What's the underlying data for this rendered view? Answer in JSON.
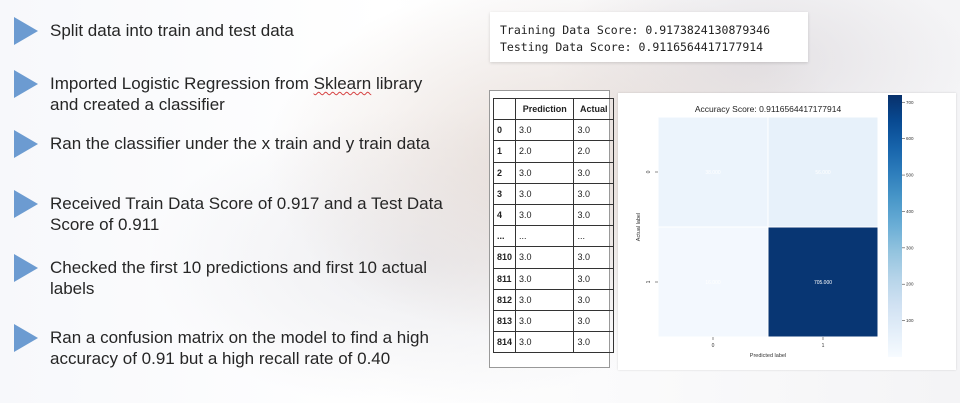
{
  "bullets": [
    {
      "lines": [
        "Split data into train and test data"
      ]
    },
    {
      "lines": [
        "Imported Logistic Regression from ",
        "Sklearn",
        " library",
        "and created a classifier"
      ]
    },
    {
      "lines": [
        "Ran the classifier under the x train and y train data"
      ]
    },
    {
      "lines": [
        "Received Train Data Score of 0.917 and a Test Data",
        "Score of 0.911"
      ]
    },
    {
      "lines": [
        "Checked the first 10 predictions and first 10 actual",
        "labels"
      ]
    },
    {
      "lines": [
        "Ran a confusion matrix on the model to find a high",
        "accuracy of 0.91 but a high recall rate of 0.40"
      ]
    }
  ],
  "scores": {
    "training": "Training Data Score: 0.9173824130879346",
    "testing": "Testing Data Score: 0.9116564417177914"
  },
  "predictions": {
    "headers": [
      "",
      "Prediction",
      "Actual"
    ],
    "rows": [
      [
        "0",
        "3.0",
        "3.0"
      ],
      [
        "1",
        "2.0",
        "2.0"
      ],
      [
        "2",
        "3.0",
        "3.0"
      ],
      [
        "3",
        "3.0",
        "3.0"
      ],
      [
        "4",
        "3.0",
        "3.0"
      ],
      [
        "...",
        "...",
        "..."
      ],
      [
        "810",
        "3.0",
        "3.0"
      ],
      [
        "811",
        "3.0",
        "3.0"
      ],
      [
        "812",
        "3.0",
        "3.0"
      ],
      [
        "813",
        "3.0",
        "3.0"
      ],
      [
        "814",
        "3.0",
        "3.0"
      ]
    ]
  },
  "chart_data": {
    "type": "heatmap",
    "title": "Accuracy Score: 0.9116564417177914",
    "xlabel": "Predicted label",
    "ylabel": "Actual label",
    "x_ticks": [
      "0",
      "1"
    ],
    "y_ticks": [
      "0",
      "1"
    ],
    "values": [
      [
        38.0,
        56.0
      ],
      [
        16.0,
        705.0
      ]
    ],
    "annotations": [
      [
        "38.000",
        "56.000"
      ],
      [
        "16.000",
        "705.000"
      ]
    ],
    "colorbar_ticks": [
      100,
      200,
      300,
      400,
      500,
      600,
      700
    ],
    "colorbar_range": [
      0,
      720
    ],
    "colormap": "Blues"
  }
}
